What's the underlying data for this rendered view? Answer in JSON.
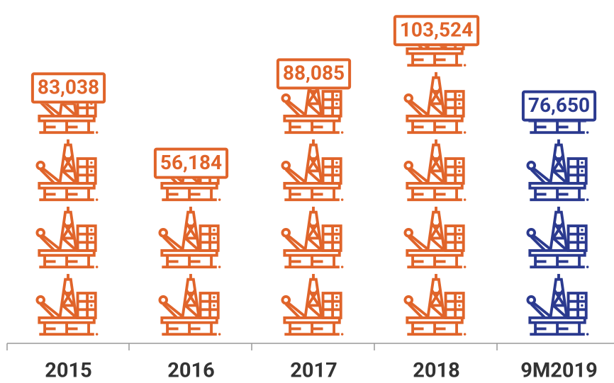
{
  "chart_data": {
    "type": "pictogram",
    "categories": [
      "2015",
      "2016",
      "2017",
      "2018",
      "9M2019"
    ],
    "values": [
      83038,
      56184,
      88085,
      103524,
      76650
    ],
    "value_labels": [
      "83,038",
      "56,184",
      "88,085",
      "103,524",
      "76,650"
    ],
    "colors": [
      "#e0642a",
      "#e0642a",
      "#e0642a",
      "#e0642a",
      "#2b3a8f"
    ],
    "ylim": [
      0,
      120000
    ]
  }
}
